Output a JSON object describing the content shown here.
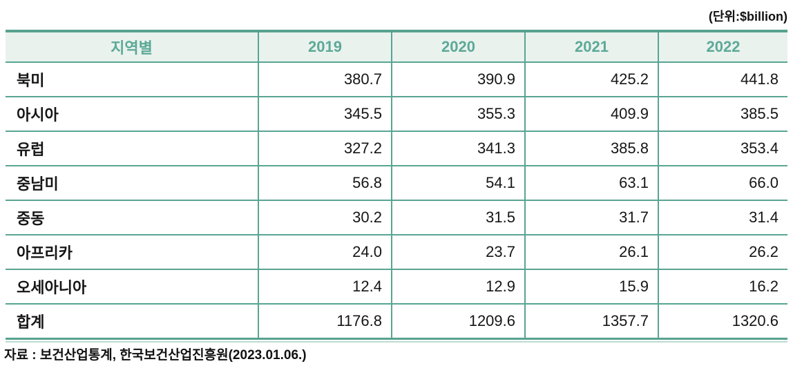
{
  "unit_label": "(단위:$billion)",
  "table": {
    "columns": [
      "지역별",
      "2019",
      "2020",
      "2021",
      "2022"
    ],
    "rows": [
      {
        "region": "북미",
        "values": [
          "380.7",
          "390.9",
          "425.2",
          "441.8"
        ]
      },
      {
        "region": "아시아",
        "values": [
          "345.5",
          "355.3",
          "409.9",
          "385.5"
        ]
      },
      {
        "region": "유럽",
        "values": [
          "327.2",
          "341.3",
          "385.8",
          "353.4"
        ]
      },
      {
        "region": "중남미",
        "values": [
          "56.8",
          "54.1",
          "63.1",
          "66.0"
        ]
      },
      {
        "region": "중동",
        "values": [
          "30.2",
          "31.5",
          "31.7",
          "31.4"
        ]
      },
      {
        "region": "아프리카",
        "values": [
          "24.0",
          "23.7",
          "26.1",
          "26.2"
        ]
      },
      {
        "region": "오세아니아",
        "values": [
          "12.4",
          "12.9",
          "15.9",
          "16.2"
        ]
      },
      {
        "region": "합계",
        "values": [
          "1176.8",
          "1209.6",
          "1357.7",
          "1320.6"
        ]
      }
    ]
  },
  "source": "자료 : 보건산업통계, 한국보건산업진흥원(2023.01.06.)",
  "colors": {
    "accent_teal": "#57a28f",
    "header_text": "#5ca997",
    "header_bg": "#eaf2ee",
    "grid_line": "#58a492",
    "bottom_light_line": "#bcdcd2",
    "body_text": "#151515"
  }
}
